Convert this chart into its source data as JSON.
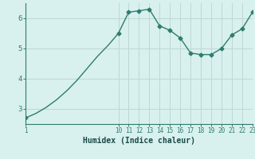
{
  "x": [
    1,
    2,
    3,
    4,
    5,
    6,
    7,
    8,
    9,
    10,
    11,
    12,
    13,
    14,
    15,
    16,
    17,
    18,
    19,
    20,
    21,
    22,
    23
  ],
  "y": [
    2.7,
    2.85,
    3.05,
    3.3,
    3.6,
    3.95,
    4.35,
    4.75,
    5.1,
    5.5,
    6.2,
    6.25,
    6.3,
    5.75,
    5.6,
    5.35,
    4.85,
    4.8,
    4.8,
    5.0,
    5.45,
    5.65,
    6.2
  ],
  "line_color": "#2e7d6e",
  "bg_color": "#d8f0ee",
  "grid_color": "#c0d8d4",
  "axis_color": "#2e7d6e",
  "xlabel": "Humidex (Indice chaleur)",
  "xlabel_color": "#1a4a46",
  "ylim": [
    2.5,
    6.5
  ],
  "xlim": [
    1,
    23
  ],
  "yticks": [
    3,
    4,
    5,
    6
  ],
  "xticks": [
    1,
    10,
    11,
    12,
    13,
    14,
    15,
    16,
    17,
    18,
    19,
    20,
    21,
    22,
    23
  ],
  "xtick_labels": [
    "1",
    "10",
    "11",
    "12",
    "13",
    "14",
    "15",
    "16",
    "17",
    "18",
    "19",
    "20",
    "21",
    "22",
    "23"
  ],
  "marker": "D",
  "marker_size": 2.5,
  "line_width": 1.0
}
